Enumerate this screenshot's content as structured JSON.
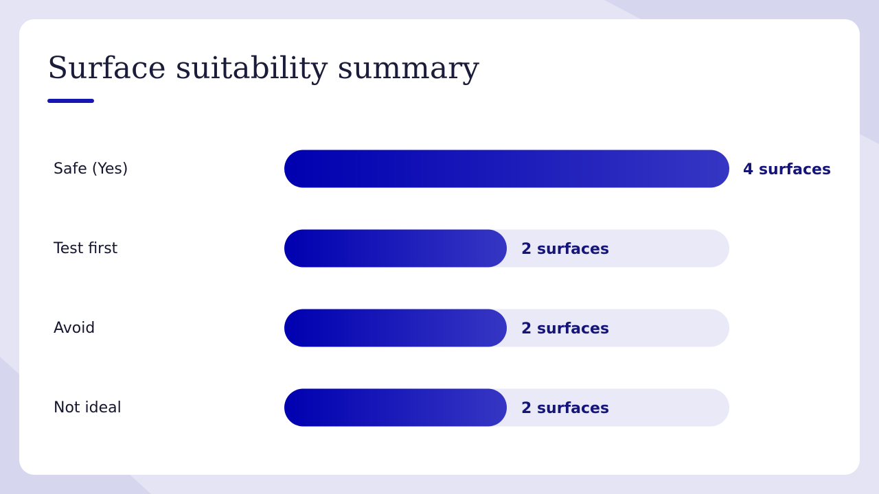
{
  "chart_data": {
    "type": "hbar",
    "title": "Surface suitability summary",
    "categories": [
      "Safe (Yes)",
      "Test first",
      "Avoid",
      "Not ideal"
    ],
    "values": [
      4,
      2,
      2,
      2
    ],
    "value_labels": [
      "4 surfaces",
      "2 surfaces",
      "2 surfaces",
      "2 surfaces"
    ],
    "color": "#0000b0",
    "xlim": [
      0,
      4
    ]
  }
}
